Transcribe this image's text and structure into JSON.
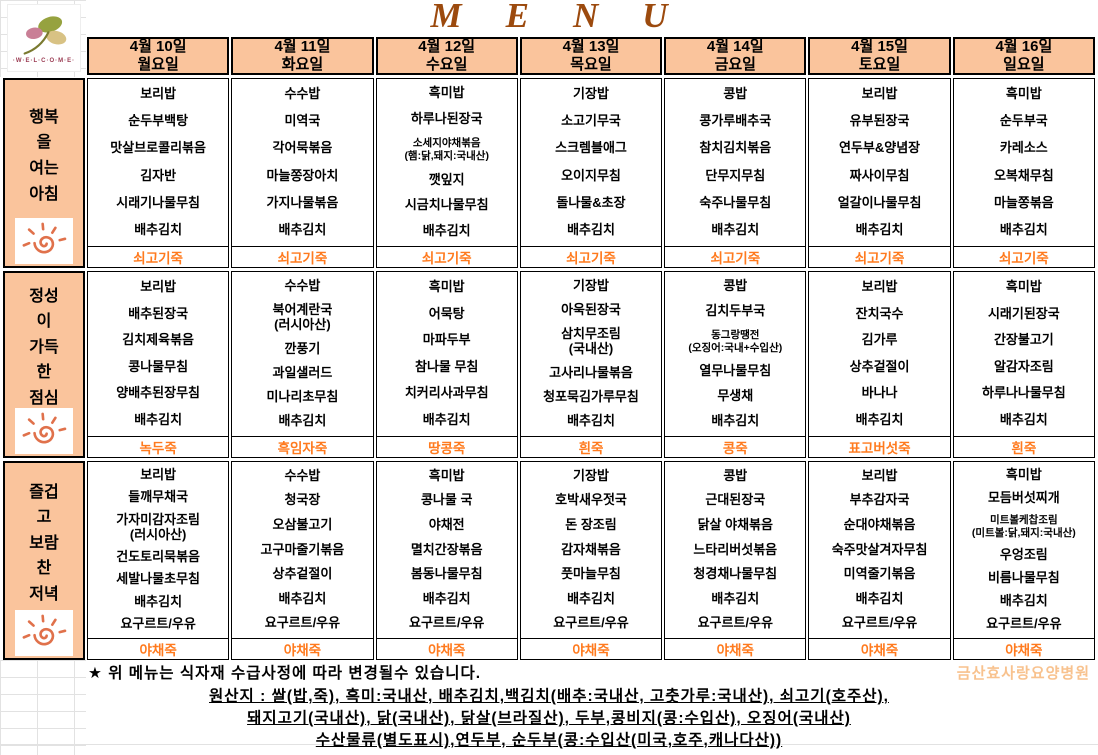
{
  "title": "MENU",
  "logo": {
    "welcome_text": "·W·E·L·C·O·M·E·"
  },
  "hospital_name": "금산효사랑요양병원",
  "meal_sections": [
    {
      "key": "breakfast",
      "label": "행복\n을\n여는\n아침"
    },
    {
      "key": "lunch",
      "label": "정성\n이\n가득\n한\n점심"
    },
    {
      "key": "dinner",
      "label": "즐겁\n고\n보람\n찬\n저녁"
    }
  ],
  "days": [
    {
      "date": "4월 10일",
      "weekday": "월요일",
      "meals": {
        "breakfast": {
          "items": [
            {
              "text": "보리밥"
            },
            {
              "text": "순두부백탕"
            },
            {
              "text": "맛살브로콜리볶음"
            },
            {
              "text": "김자반"
            },
            {
              "text": "시래기나물무침"
            },
            {
              "text": "배추김치"
            }
          ],
          "porridge": "쇠고기죽"
        },
        "lunch": {
          "items": [
            {
              "text": "보리밥"
            },
            {
              "text": "배추된장국"
            },
            {
              "text": "김치제육볶음"
            },
            {
              "text": "콩나물무침"
            },
            {
              "text": "양배추된장무침"
            },
            {
              "text": "배추김치"
            }
          ],
          "porridge": "녹두죽"
        },
        "dinner": {
          "items": [
            {
              "text": "보리밥"
            },
            {
              "text": "들깨무채국"
            },
            {
              "text": "가자미감자조림",
              "sub": "(러시아산)"
            },
            {
              "text": "건도토리묵볶음"
            },
            {
              "text": "세발나물초무침"
            },
            {
              "text": "배추김치"
            },
            {
              "text": "요구르트/우유"
            }
          ],
          "porridge": "야채죽"
        }
      }
    },
    {
      "date": "4월 11일",
      "weekday": "화요일",
      "meals": {
        "breakfast": {
          "items": [
            {
              "text": "수수밥"
            },
            {
              "text": "미역국"
            },
            {
              "text": "각어묵볶음"
            },
            {
              "text": "마늘쫑장아치"
            },
            {
              "text": "가지나물볶음"
            },
            {
              "text": "배추김치"
            }
          ],
          "porridge": "쇠고기죽"
        },
        "lunch": {
          "items": [
            {
              "text": "수수밥"
            },
            {
              "text": "북어계란국",
              "sub": "(러시아산)"
            },
            {
              "text": "깐풍기"
            },
            {
              "text": "과일샐러드"
            },
            {
              "text": "미나리초무침"
            },
            {
              "text": "배추김치"
            }
          ],
          "porridge": "흑임자죽"
        },
        "dinner": {
          "items": [
            {
              "text": "수수밥"
            },
            {
              "text": "청국장"
            },
            {
              "text": "오삼불고기"
            },
            {
              "text": "고구마줄기볶음"
            },
            {
              "text": "상추겉절이"
            },
            {
              "text": "배추김치"
            },
            {
              "text": "요구르트/우유"
            }
          ],
          "porridge": "야채죽"
        }
      }
    },
    {
      "date": "4월 12일",
      "weekday": "수요일",
      "meals": {
        "breakfast": {
          "items": [
            {
              "text": "흑미밥"
            },
            {
              "text": "하루나된장국"
            },
            {
              "text": "소세지야채볶음",
              "sub": "(햄:닭,돼지:국내산)",
              "small": true
            },
            {
              "text": "깻잎지"
            },
            {
              "text": "시금치나물무침"
            },
            {
              "text": "배추김치"
            }
          ],
          "porridge": "쇠고기죽"
        },
        "lunch": {
          "items": [
            {
              "text": "흑미밥"
            },
            {
              "text": "어묵탕"
            },
            {
              "text": "마파두부"
            },
            {
              "text": "참나물 무침"
            },
            {
              "text": "치커리사과무침"
            },
            {
              "text": "배추김치"
            }
          ],
          "porridge": "땅콩죽"
        },
        "dinner": {
          "items": [
            {
              "text": "흑미밥"
            },
            {
              "text": "콩나물 국"
            },
            {
              "text": "야채전"
            },
            {
              "text": "멸치간장볶음"
            },
            {
              "text": "봄동나물무침"
            },
            {
              "text": "배추김치"
            },
            {
              "text": "요구르트/우유"
            }
          ],
          "porridge": "야채죽"
        }
      }
    },
    {
      "date": "4월 13일",
      "weekday": "목요일",
      "meals": {
        "breakfast": {
          "items": [
            {
              "text": "기장밥"
            },
            {
              "text": "소고기무국"
            },
            {
              "text": "스크렘블애그"
            },
            {
              "text": "오이지무침"
            },
            {
              "text": "돌나물&초장"
            },
            {
              "text": "배추김치"
            }
          ],
          "porridge": "쇠고기죽"
        },
        "lunch": {
          "items": [
            {
              "text": "기장밥"
            },
            {
              "text": "아욱된장국"
            },
            {
              "text": "삼치무조림",
              "sub": "(국내산)"
            },
            {
              "text": "고사리나물볶음"
            },
            {
              "text": "청포묵김가루무침"
            },
            {
              "text": "배추김치"
            }
          ],
          "porridge": "흰죽"
        },
        "dinner": {
          "items": [
            {
              "text": "기장밥"
            },
            {
              "text": "호박새우젓국"
            },
            {
              "text": "돈 장조림"
            },
            {
              "text": "감자채볶음"
            },
            {
              "text": "풋마늘무침"
            },
            {
              "text": "배추김치"
            },
            {
              "text": "요구르트/우유"
            }
          ],
          "porridge": "야채죽"
        }
      }
    },
    {
      "date": "4월 14일",
      "weekday": "금요일",
      "meals": {
        "breakfast": {
          "items": [
            {
              "text": "콩밥"
            },
            {
              "text": "콩가루배추국"
            },
            {
              "text": "참치김치볶음"
            },
            {
              "text": "단무지무침"
            },
            {
              "text": "숙주나물무침"
            },
            {
              "text": "배추김치"
            }
          ],
          "porridge": "쇠고기죽"
        },
        "lunch": {
          "items": [
            {
              "text": "콩밥"
            },
            {
              "text": "김치두부국"
            },
            {
              "text": "동그랑땡전",
              "sub": "(오징어:국내+수입산)",
              "small": true
            },
            {
              "text": "열무나물무침"
            },
            {
              "text": "무생채"
            },
            {
              "text": "배추김치"
            }
          ],
          "porridge": "콩죽"
        },
        "dinner": {
          "items": [
            {
              "text": "콩밥"
            },
            {
              "text": "근대된장국"
            },
            {
              "text": "닭살 야채볶음"
            },
            {
              "text": "느타리버섯볶음"
            },
            {
              "text": "청경채나물무침"
            },
            {
              "text": "배추김치"
            },
            {
              "text": "요구르트/우유"
            }
          ],
          "porridge": "야채죽"
        }
      }
    },
    {
      "date": "4월 15일",
      "weekday": "토요일",
      "meals": {
        "breakfast": {
          "items": [
            {
              "text": "보리밥"
            },
            {
              "text": "유부된장국"
            },
            {
              "text": "연두부&양념장"
            },
            {
              "text": "짜사이무침"
            },
            {
              "text": "얼갈이나물무침"
            },
            {
              "text": "배추김치"
            }
          ],
          "porridge": "쇠고기죽"
        },
        "lunch": {
          "items": [
            {
              "text": "보리밥"
            },
            {
              "text": "잔치국수"
            },
            {
              "text": "김가루"
            },
            {
              "text": "상추겉절이"
            },
            {
              "text": "바나나"
            },
            {
              "text": "배추김치"
            }
          ],
          "porridge": "표고버섯죽"
        },
        "dinner": {
          "items": [
            {
              "text": "보리밥"
            },
            {
              "text": "부추감자국"
            },
            {
              "text": "순대야채볶음"
            },
            {
              "text": "숙주맛살겨자무침"
            },
            {
              "text": "미역줄기볶음"
            },
            {
              "text": "배추김치"
            },
            {
              "text": "요구르트/우유"
            }
          ],
          "porridge": "야채죽"
        }
      }
    },
    {
      "date": "4월 16일",
      "weekday": "일요일",
      "meals": {
        "breakfast": {
          "items": [
            {
              "text": "흑미밥"
            },
            {
              "text": "순두부국"
            },
            {
              "text": "카레소스"
            },
            {
              "text": "오복채무침"
            },
            {
              "text": "마늘쫑볶음"
            },
            {
              "text": "배추김치"
            }
          ],
          "porridge": "쇠고기죽"
        },
        "lunch": {
          "items": [
            {
              "text": "흑미밥"
            },
            {
              "text": "시래기된장국"
            },
            {
              "text": "간장불고기"
            },
            {
              "text": "알감자조림"
            },
            {
              "text": "하루나나물무침"
            },
            {
              "text": "배추김치"
            }
          ],
          "porridge": "흰죽"
        },
        "dinner": {
          "items": [
            {
              "text": "흑미밥"
            },
            {
              "text": "모듬버섯찌개"
            },
            {
              "text": "미트볼케찹조림",
              "sub": "(미트볼:닭,돼지:국내산)",
              "small": true
            },
            {
              "text": "우엉조림"
            },
            {
              "text": "비름나물무침"
            },
            {
              "text": "배추김치"
            },
            {
              "text": "요구르트/우유"
            }
          ],
          "porridge": "야채죽"
        }
      }
    }
  ],
  "footer": {
    "notice": "★ 위 메뉴는 식자재 수급사정에 따라 변경될수 있습니다.",
    "origin_lines": [
      "원산지 : 쌀(밥,죽), 흑미:국내산, 배추김치,백김치(배추:국내산, 고춧가루:국내산), 쇠고기(호주산),",
      "돼지고기(국내산), 닭(국내산), 닭살(브라질산), 두부,콩비지(콩:수입산), 오징어(국내산)",
      "수산물류(별도표시),연두부, 순두부(콩:수입산(미국,호주,캐나다산))"
    ]
  }
}
